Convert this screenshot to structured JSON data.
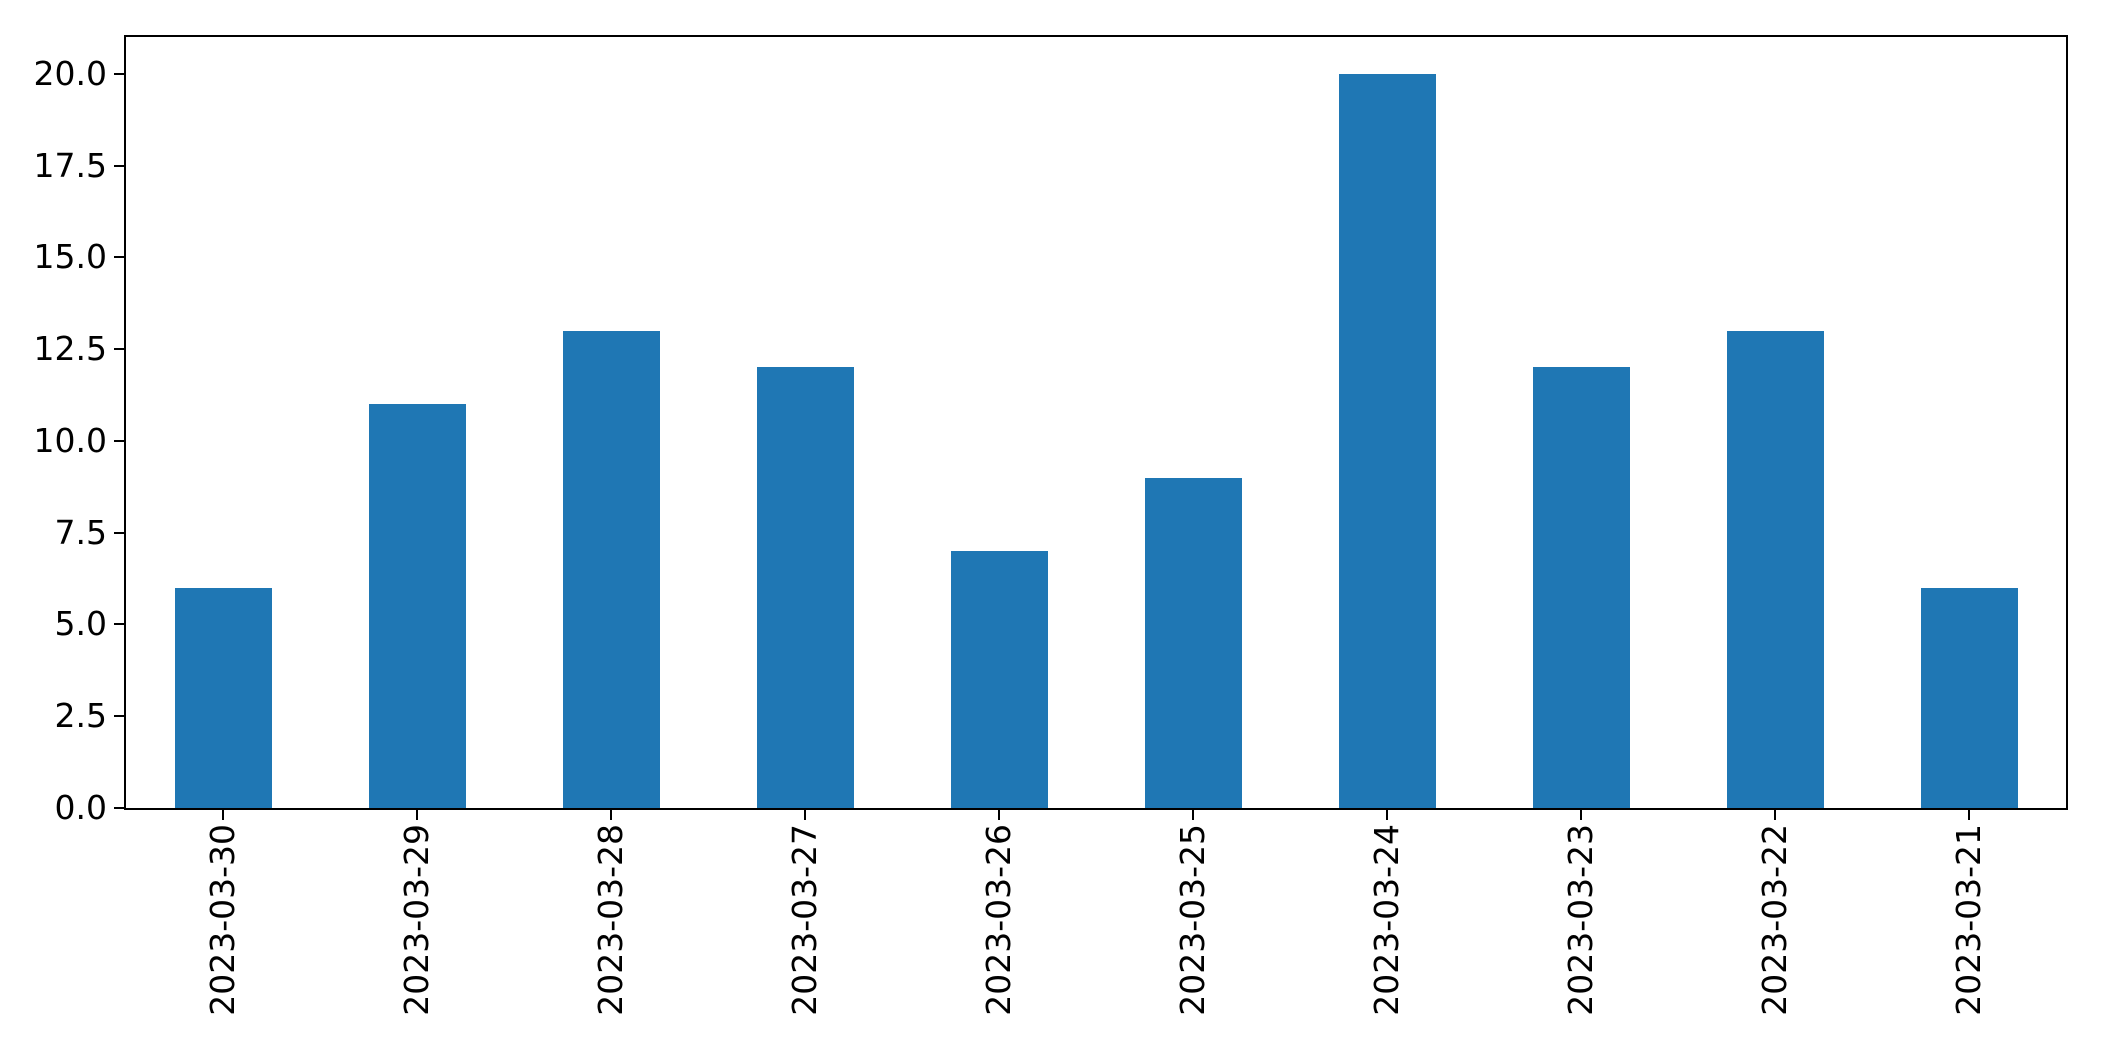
{
  "chart_data": {
    "type": "bar",
    "title": "",
    "xlabel": "",
    "ylabel": "",
    "categories": [
      "2023-03-30",
      "2023-03-29",
      "2023-03-28",
      "2023-03-27",
      "2023-03-26",
      "2023-03-25",
      "2023-03-24",
      "2023-03-23",
      "2023-03-22",
      "2023-03-21"
    ],
    "values": [
      6,
      11,
      13,
      12,
      7,
      9,
      20,
      12,
      13,
      6
    ],
    "ylim": [
      0,
      21
    ],
    "yticks": [
      0.0,
      2.5,
      5.0,
      7.5,
      10.0,
      12.5,
      15.0,
      17.5,
      20.0
    ],
    "ytick_labels": [
      "0.0",
      "2.5",
      "5.0",
      "7.5",
      "10.0",
      "12.5",
      "15.0",
      "17.5",
      "20.0"
    ],
    "x_tick_rotation_deg": 90,
    "grid": false,
    "legend": null,
    "bar_color": "#1f77b4",
    "spine_color": "#000000",
    "bar_width_fraction": 0.5
  }
}
